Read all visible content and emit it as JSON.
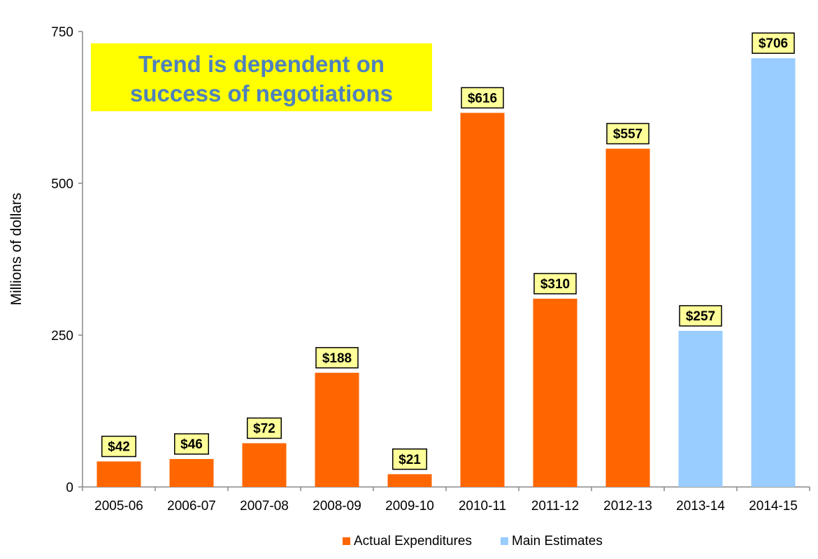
{
  "chart_data": {
    "type": "bar",
    "ylabel": "Millions of dollars",
    "ylim": [
      0,
      750
    ],
    "yticks": [
      0,
      250,
      500,
      750
    ],
    "categories": [
      "2005-06",
      "2006-07",
      "2007-08",
      "2008-09",
      "2009-10",
      "2010-11",
      "2011-12",
      "2012-13",
      "2013-14",
      "2014-15"
    ],
    "values": [
      42,
      46,
      72,
      188,
      21,
      616,
      310,
      557,
      257,
      706
    ],
    "data_labels": [
      "$42",
      "$46",
      "$72",
      "$188",
      "$21",
      "$616",
      "$310",
      "$557",
      "$257",
      "$706"
    ],
    "series": [
      {
        "name": "Actual Expenditures",
        "color": "#FF6600",
        "categories": [
          "2005-06",
          "2006-07",
          "2007-08",
          "2008-09",
          "2009-10",
          "2010-11",
          "2011-12",
          "2012-13"
        ]
      },
      {
        "name": "Main Estimates",
        "color": "#99CCFF",
        "categories": [
          "2013-14",
          "2014-15"
        ]
      }
    ],
    "legend_position": "bottom-center",
    "grid": false,
    "annotation": {
      "lines": [
        "Trend is dependent on",
        "success of negotiations"
      ],
      "background": "#FFFF00",
      "text_color": "#4F81BD",
      "position": "top-left"
    },
    "data_label_style": {
      "background": "#FFFF99",
      "border": "#000000"
    }
  }
}
